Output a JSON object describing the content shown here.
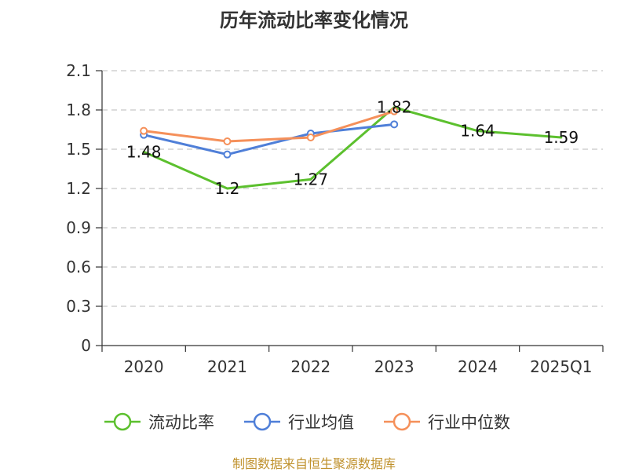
{
  "title": "历年流动比率变化情况",
  "source": "制图数据来自恒生聚源数据库",
  "chart_data": {
    "type": "line",
    "title": "历年流动比率变化情况",
    "categories": [
      "2020",
      "2021",
      "2022",
      "2023",
      "2024",
      "2025Q1"
    ],
    "ylim": [
      0,
      2.1
    ],
    "yticks": [
      0,
      0.3,
      0.6,
      0.9,
      1.2,
      1.5,
      1.8,
      2.1
    ],
    "ytick_labels": [
      "0",
      "0.3",
      "0.6",
      "0.9",
      "1.2",
      "1.5",
      "1.8",
      "2.1"
    ],
    "grid": true,
    "legend_position": "bottom",
    "series": [
      {
        "name": "流动比率",
        "color": "#5cc02e",
        "values": [
          1.48,
          1.2,
          1.27,
          1.82,
          1.64,
          1.59
        ],
        "labels": [
          "1.48",
          "1.2",
          "1.27",
          "1.82",
          "1.64",
          "1.59"
        ],
        "markers": false
      },
      {
        "name": "行业均值",
        "color": "#4f7fd8",
        "values": [
          1.61,
          1.46,
          1.62,
          1.69,
          null,
          null
        ],
        "markers": true
      },
      {
        "name": "行业中位数",
        "color": "#f5905a",
        "values": [
          1.64,
          1.56,
          1.59,
          1.79,
          null,
          null
        ],
        "markers": true
      }
    ]
  }
}
